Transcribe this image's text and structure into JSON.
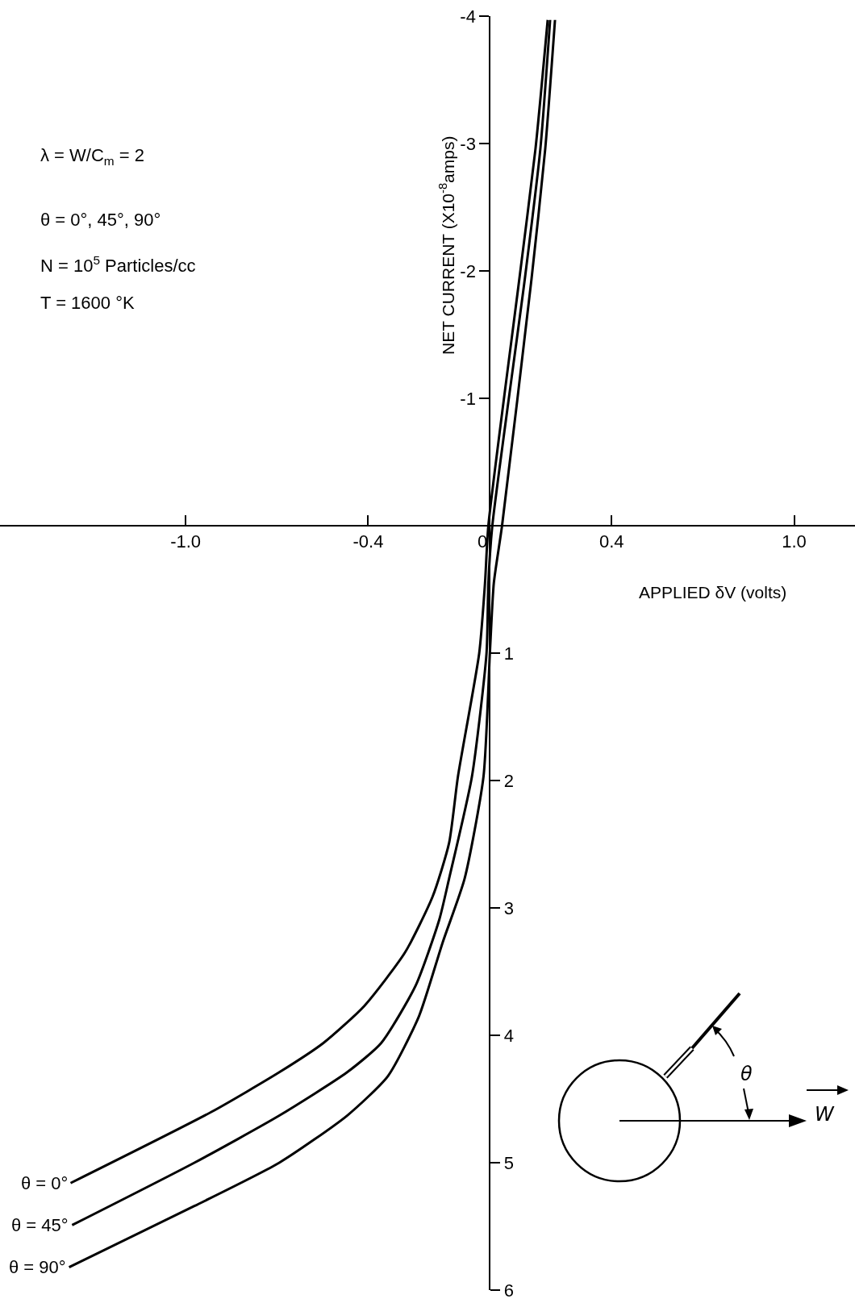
{
  "chart_data": {
    "type": "line",
    "xlabel": "APPLIED δV (volts)",
    "ylabel": "NET CURRENT (X10$^{-8}$amps)",
    "xlim": [
      -1.61,
      1.2
    ],
    "xticks": [
      {
        "value": -1,
        "label": "-1.0"
      },
      {
        "value": -0.4,
        "label": "-0.4"
      },
      {
        "value": 0,
        "label": "0"
      },
      {
        "value": 0.4,
        "label": "0.4"
      },
      {
        "value": 1,
        "label": "1.0"
      }
    ],
    "ylim": [
      6,
      -4
    ],
    "yticks": [
      -4,
      -3,
      -2,
      -1
    ],
    "y2lim": [
      6,
      -4
    ],
    "y2ticks": [
      1,
      2,
      3,
      4,
      5,
      6
    ],
    "grid": false,
    "legend": false,
    "annotations": [
      "λ = W/C$_{m}$ = 2",
      "θ = 0°, 45°, 90°",
      "N = 10$^{5}$ Particles/cc",
      "T = 1600 °K",
      "θ",
      "W"
    ],
    "series": [
      {
        "name": "θ = 0°",
        "color": "#000000",
        "x": [
          -1.378,
          -0.914,
          -0.692,
          -0.547,
          -0.413,
          -0.279,
          -0.188,
          -0.134,
          -0.105,
          -0.035,
          -0.016,
          -0.005,
          0.097,
          0.15,
          0.19
        ],
        "values": [
          5.16,
          4.6,
          4.29,
          4.06,
          3.77,
          3.35,
          2.91,
          2.49,
          1.97,
          1.0,
          0.45,
          0.0,
          -1.94,
          -2.96,
          -3.97
        ]
      },
      {
        "name": "θ = 45°",
        "color": "#000000",
        "x": [
          -1.373,
          -0.971,
          -0.692,
          -0.469,
          -0.357,
          -0.244,
          -0.166,
          -0.134,
          -0.059,
          -0.011,
          -0.005,
          0.008,
          0.115,
          0.166,
          0.198
        ],
        "values": [
          5.49,
          5.0,
          4.63,
          4.29,
          4.06,
          3.61,
          3.09,
          2.77,
          1.97,
          1.0,
          0.45,
          0.0,
          -1.94,
          -2.96,
          -3.97
        ]
      },
      {
        "name": "θ = 90°",
        "color": "#000000",
        "x": [
          -1.383,
          -0.971,
          -0.692,
          -0.469,
          -0.335,
          -0.233,
          -0.155,
          -0.083,
          -0.021,
          0.0,
          0.013,
          0.04,
          0.137,
          0.182,
          0.214
        ],
        "values": [
          5.82,
          5.34,
          5.0,
          4.63,
          4.32,
          3.85,
          3.27,
          2.77,
          1.97,
          1.0,
          0.45,
          0.0,
          -1.94,
          -2.96,
          -3.97
        ]
      }
    ]
  }
}
